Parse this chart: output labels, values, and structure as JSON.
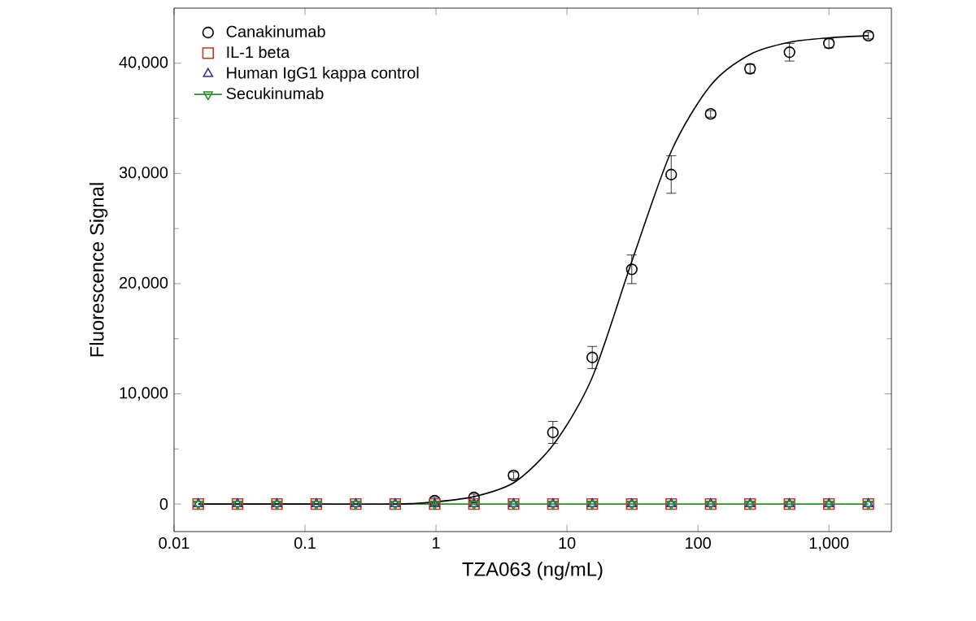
{
  "chart_data": {
    "type": "scatter",
    "xlabel": "TZA063 (ng/mL)",
    "ylabel": "Fluorescence Signal",
    "log": "x",
    "xlim": [
      0.01,
      3000
    ],
    "ylim": [
      -2500,
      45000
    ],
    "xticks": [
      0.01,
      0.1,
      1,
      10,
      100,
      {
        "value": 1000,
        "label": "1,000"
      }
    ],
    "yticks": [
      0,
      {
        "value": 10000,
        "label": "10,000"
      },
      {
        "value": 20000,
        "label": "20,000"
      },
      {
        "value": 30000,
        "label": "30,000"
      },
      {
        "value": 40000,
        "label": "40,000"
      }
    ],
    "grid": false,
    "legend": "top left",
    "x": [
      0.0153,
      0.0305,
      0.061,
      0.122,
      0.244,
      0.488,
      0.977,
      1.95,
      3.91,
      7.81,
      15.6,
      31.25,
      62.5,
      125,
      250,
      500,
      1000,
      2000
    ],
    "series": [
      {
        "name": "Canakinumab",
        "color": "#000000",
        "marker": "circle",
        "values": [
          null,
          null,
          null,
          null,
          null,
          null,
          300,
          600,
          2600,
          6500,
          13300,
          21300,
          29900,
          35400,
          39500,
          41000,
          41800,
          42500
        ],
        "errors": [
          null,
          null,
          null,
          null,
          null,
          null,
          300,
          300,
          300,
          1000,
          1000,
          1300,
          1700,
          300,
          400,
          800,
          400,
          300
        ]
      },
      {
        "name": "IL-1 beta",
        "color": "#c0392b",
        "marker": "square",
        "values": [
          0,
          0,
          0,
          0,
          0,
          0,
          0,
          0,
          0,
          0,
          0,
          0,
          0,
          0,
          0,
          0,
          0,
          0
        ]
      },
      {
        "name": "Human IgG1 kappa control",
        "color": "#2e3192",
        "marker": "triangle",
        "values": [
          0,
          0,
          0,
          0,
          0,
          0,
          0,
          0,
          0,
          0,
          0,
          0,
          0,
          0,
          0,
          0,
          0,
          0
        ]
      },
      {
        "name": "Secukinumab",
        "color": "#2e8b2e",
        "marker": "triangle down",
        "type": "line",
        "values": [
          0,
          0,
          0,
          0,
          0,
          0,
          0,
          0,
          0,
          0,
          0,
          0,
          0,
          0,
          0,
          0,
          0,
          0
        ]
      },
      {
        "type": "line",
        "color": "#000000",
        "marker": "none",
        "x": [
          0.0153,
          0.1,
          0.5,
          1,
          2,
          4,
          8,
          15.6,
          31.25,
          62.5,
          125,
          250,
          500,
          1000,
          2000
        ],
        "values": [
          0,
          0,
          0,
          200,
          700,
          2000,
          5500,
          11500,
          22000,
          32000,
          38000,
          40800,
          41900,
          42300,
          42500
        ]
      }
    ]
  }
}
